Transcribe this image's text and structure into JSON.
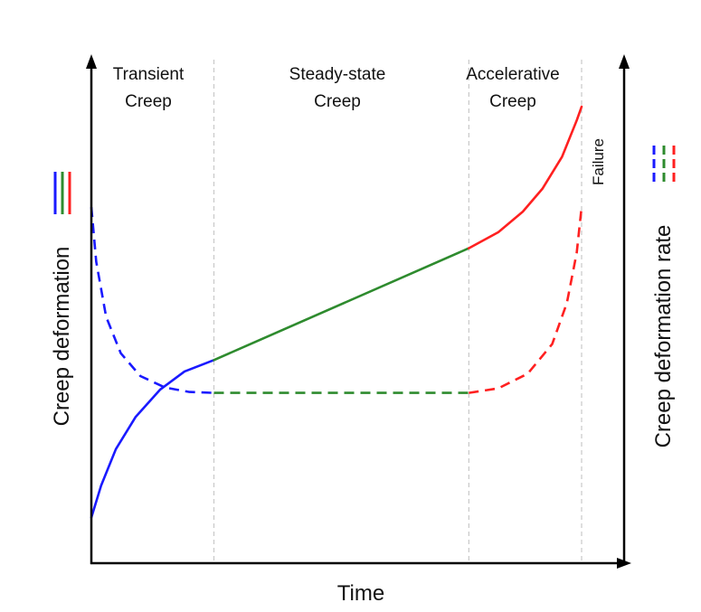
{
  "chart_data": {
    "type": "line",
    "title": "",
    "xlabel": "Time",
    "ylabel_left": "Creep deformation",
    "ylabel_right": "Creep deformation rate",
    "grid": false,
    "phases": [
      {
        "line1": "Transient",
        "line2": "Creep",
        "x_start": 0.0,
        "x_end": 0.25
      },
      {
        "line1": "Steady-state",
        "line2": "Creep",
        "x_start": 0.25,
        "x_end": 0.77
      },
      {
        "line1": "Accelerative",
        "line2": "Creep",
        "x_start": 0.77,
        "x_end": 1.0
      }
    ],
    "failure_label": "Failure",
    "failure_x": 1.0,
    "phase_colors": [
      "#1a1aff",
      "#2e8b2e",
      "#ff2020"
    ],
    "legend": {
      "left": "solid lines = creep deformation",
      "right": "dashed lines = creep deformation rate"
    },
    "series": [
      {
        "style": "solid",
        "segments": [
          {
            "color": "#1a1aff",
            "points": [
              [
                0.0,
                0.1
              ],
              [
                0.02,
                0.17
              ],
              [
                0.05,
                0.25
              ],
              [
                0.09,
                0.32
              ],
              [
                0.14,
                0.38
              ],
              [
                0.19,
                0.42
              ],
              [
                0.25,
                0.445
              ]
            ]
          },
          {
            "color": "#2e8b2e",
            "points": [
              [
                0.25,
                0.445
              ],
              [
                0.77,
                0.69
              ]
            ]
          },
          {
            "color": "#ff2020",
            "points": [
              [
                0.77,
                0.69
              ],
              [
                0.83,
                0.725
              ],
              [
                0.88,
                0.77
              ],
              [
                0.92,
                0.82
              ],
              [
                0.96,
                0.89
              ],
              [
                0.99,
                0.97
              ],
              [
                1.0,
                1.0
              ]
            ]
          }
        ]
      },
      {
        "style": "dashed",
        "segments": [
          {
            "color": "#1a1aff",
            "points": [
              [
                0.0,
                0.78
              ],
              [
                0.01,
                0.66
              ],
              [
                0.03,
                0.54
              ],
              [
                0.06,
                0.46
              ],
              [
                0.1,
                0.41
              ],
              [
                0.15,
                0.385
              ],
              [
                0.2,
                0.375
              ],
              [
                0.25,
                0.373
              ]
            ]
          },
          {
            "color": "#2e8b2e",
            "points": [
              [
                0.25,
                0.373
              ],
              [
                0.77,
                0.373
              ]
            ]
          },
          {
            "color": "#ff2020",
            "points": [
              [
                0.77,
                0.373
              ],
              [
                0.83,
                0.383
              ],
              [
                0.89,
                0.415
              ],
              [
                0.94,
                0.48
              ],
              [
                0.97,
                0.57
              ],
              [
                0.99,
                0.68
              ],
              [
                1.0,
                0.78
              ]
            ]
          }
        ]
      }
    ]
  }
}
